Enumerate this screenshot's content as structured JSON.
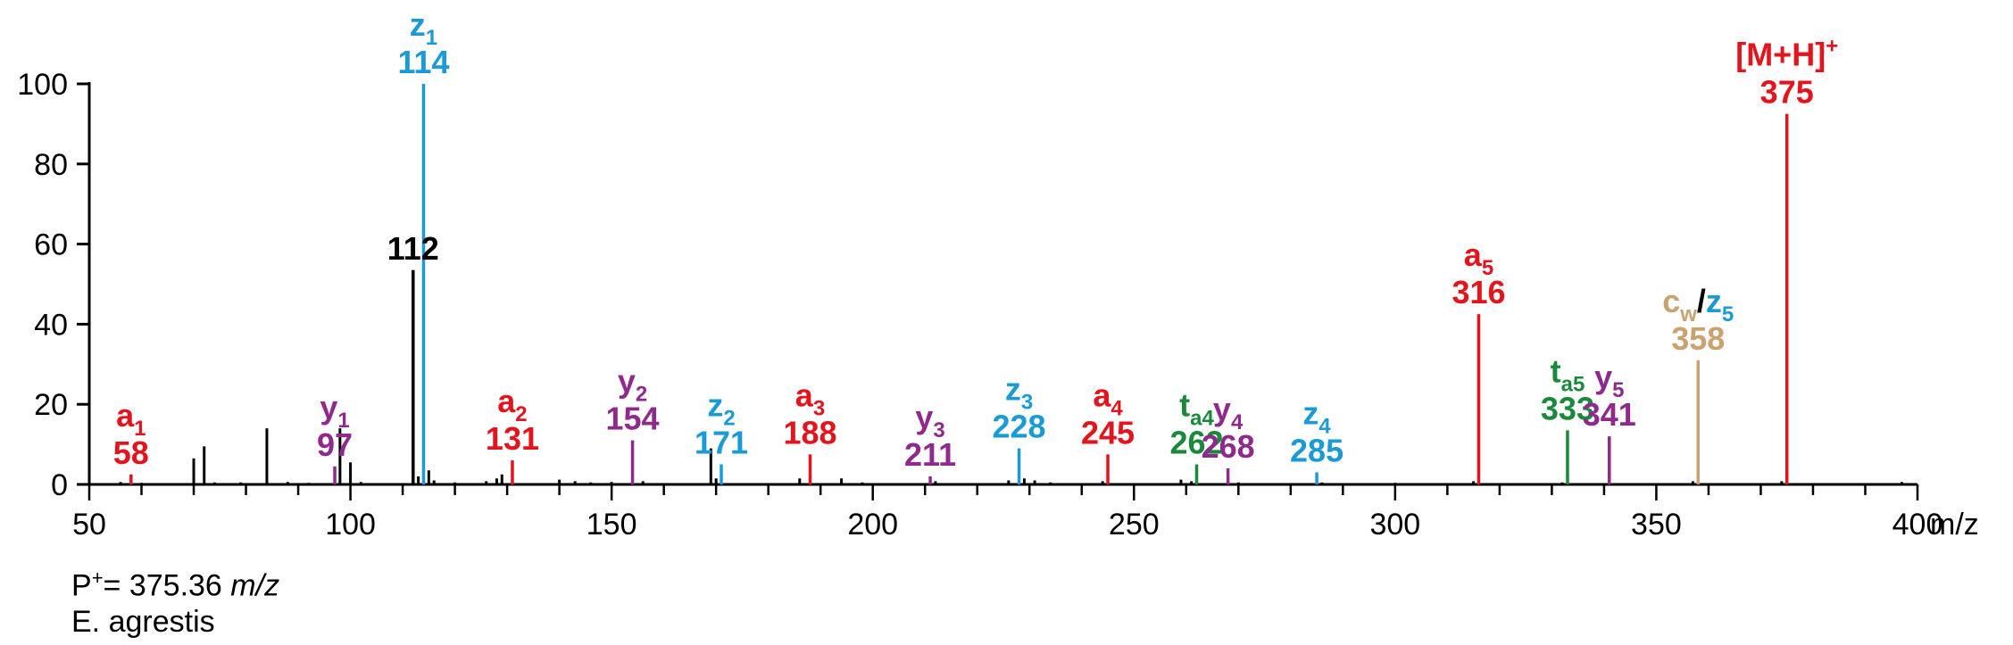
{
  "chart_data": {
    "type": "bar",
    "xlabel": "m/z",
    "ylabel": "",
    "xlim": [
      50,
      400
    ],
    "ylim": [
      0,
      100
    ],
    "x_ticks": [
      "50",
      "100",
      "150",
      "200",
      "250",
      "300",
      "350",
      "400"
    ],
    "y_ticks": [
      "0",
      "20",
      "40",
      "60",
      "80",
      "100"
    ],
    "colors": {
      "a": "#e3141b",
      "y": "#8f2a8c",
      "z": "#1a9ad7",
      "t": "#1a8a3a",
      "c": "#c9a270",
      "other": "#000000"
    },
    "annotated_peaks": [
      {
        "mz": 58,
        "intensity": 2.5,
        "ion": "a",
        "sub": "1",
        "label": "58",
        "color": "#e3141b"
      },
      {
        "mz": 97,
        "intensity": 4.5,
        "ion": "y",
        "sub": "1",
        "label": "97",
        "color": "#8f2a8c"
      },
      {
        "mz": 112,
        "intensity": 53.5,
        "ion": "",
        "sub": "",
        "label": "112",
        "color": "#000000"
      },
      {
        "mz": 114,
        "intensity": 100,
        "ion": "z",
        "sub": "1",
        "label": "114",
        "color": "#1a9ad7"
      },
      {
        "mz": 131,
        "intensity": 6,
        "ion": "a",
        "sub": "2",
        "label": "131",
        "color": "#e3141b"
      },
      {
        "mz": 154,
        "intensity": 11,
        "ion": "y",
        "sub": "2",
        "label": "154",
        "color": "#8f2a8c"
      },
      {
        "mz": 171,
        "intensity": 5,
        "ion": "z",
        "sub": "2",
        "label": "171",
        "color": "#1a9ad7"
      },
      {
        "mz": 188,
        "intensity": 7.5,
        "ion": "a",
        "sub": "3",
        "label": "188",
        "color": "#e3141b"
      },
      {
        "mz": 211,
        "intensity": 2,
        "ion": "y",
        "sub": "3",
        "label": "211",
        "color": "#8f2a8c"
      },
      {
        "mz": 228,
        "intensity": 9,
        "ion": "z",
        "sub": "3",
        "label": "228",
        "color": "#1a9ad7"
      },
      {
        "mz": 245,
        "intensity": 7.5,
        "ion": "a",
        "sub": "4",
        "label": "245",
        "color": "#e3141b"
      },
      {
        "mz": 262,
        "intensity": 5,
        "ion": "t",
        "sub": "a4",
        "label": "262",
        "color": "#1a8a3a"
      },
      {
        "mz": 268,
        "intensity": 4,
        "ion": "y",
        "sub": "4",
        "label": "268",
        "color": "#8f2a8c"
      },
      {
        "mz": 285,
        "intensity": 3,
        "ion": "z",
        "sub": "4",
        "label": "285",
        "color": "#1a9ad7"
      },
      {
        "mz": 316,
        "intensity": 42.5,
        "ion": "a",
        "sub": "5",
        "label": "316",
        "color": "#e3141b"
      },
      {
        "mz": 333,
        "intensity": 13.5,
        "ion": "t",
        "sub": "a5",
        "label": "333",
        "color": "#1a8a3a"
      },
      {
        "mz": 341,
        "intensity": 12,
        "ion": "y",
        "sub": "5",
        "label": "341",
        "color": "#8f2a8c"
      },
      {
        "mz": 358,
        "intensity": 31,
        "ion": "c/z",
        "sub": "w/5",
        "label": "358",
        "color": "#c9a270"
      },
      {
        "mz": 375,
        "intensity": 92.5,
        "ion": "[M+H]+",
        "sub": "",
        "label": "375",
        "color": "#e3141b"
      }
    ],
    "minor_peaks": [
      {
        "mz": 56,
        "intensity": 0.6
      },
      {
        "mz": 60,
        "intensity": 0.4
      },
      {
        "mz": 64,
        "intensity": 0.3
      },
      {
        "mz": 70,
        "intensity": 6.5
      },
      {
        "mz": 72,
        "intensity": 9.5
      },
      {
        "mz": 74,
        "intensity": 0.5
      },
      {
        "mz": 79,
        "intensity": 0.5
      },
      {
        "mz": 84,
        "intensity": 14
      },
      {
        "mz": 88,
        "intensity": 0.6
      },
      {
        "mz": 92,
        "intensity": 0.4
      },
      {
        "mz": 98,
        "intensity": 14
      },
      {
        "mz": 100,
        "intensity": 5.5
      },
      {
        "mz": 102,
        "intensity": 0.6
      },
      {
        "mz": 113,
        "intensity": 2
      },
      {
        "mz": 115,
        "intensity": 3.5
      },
      {
        "mz": 116,
        "intensity": 1
      },
      {
        "mz": 120,
        "intensity": 0.5
      },
      {
        "mz": 126,
        "intensity": 0.8
      },
      {
        "mz": 128,
        "intensity": 1.5
      },
      {
        "mz": 129,
        "intensity": 2.5
      },
      {
        "mz": 140,
        "intensity": 1.2
      },
      {
        "mz": 143,
        "intensity": 0.8
      },
      {
        "mz": 146,
        "intensity": 0.5
      },
      {
        "mz": 150,
        "intensity": 0.6
      },
      {
        "mz": 156,
        "intensity": 0.8
      },
      {
        "mz": 169,
        "intensity": 9
      },
      {
        "mz": 170,
        "intensity": 1.5
      },
      {
        "mz": 186,
        "intensity": 1.5
      },
      {
        "mz": 194,
        "intensity": 1.5
      },
      {
        "mz": 198,
        "intensity": 0.5
      },
      {
        "mz": 212,
        "intensity": 0.8
      },
      {
        "mz": 226,
        "intensity": 1
      },
      {
        "mz": 229,
        "intensity": 1.5
      },
      {
        "mz": 231,
        "intensity": 1
      },
      {
        "mz": 234,
        "intensity": 0.5
      },
      {
        "mz": 244,
        "intensity": 0.8
      },
      {
        "mz": 259,
        "intensity": 1.2
      },
      {
        "mz": 261,
        "intensity": 0.8
      },
      {
        "mz": 270,
        "intensity": 0.5
      },
      {
        "mz": 286,
        "intensity": 0.5
      },
      {
        "mz": 300,
        "intensity": 0.4
      },
      {
        "mz": 315,
        "intensity": 0.8
      },
      {
        "mz": 332,
        "intensity": 0.5
      },
      {
        "mz": 357,
        "intensity": 0.8
      },
      {
        "mz": 374,
        "intensity": 0.8
      },
      {
        "mz": 397,
        "intensity": 0.6
      }
    ]
  },
  "caption": {
    "precursor_prefix": "P",
    "precursor_sup": "+",
    "precursor_value": "= 375.36 ",
    "precursor_unit": "m/z",
    "species": "E. agrestis"
  }
}
